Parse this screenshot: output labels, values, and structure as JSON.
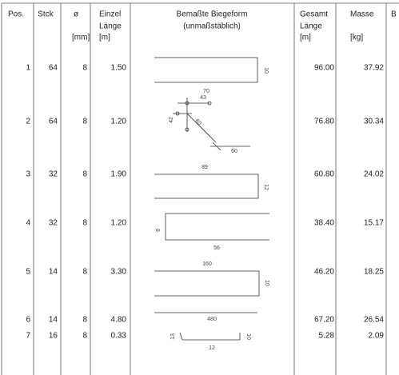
{
  "header": {
    "pos": "Pos.",
    "stck": "Stck",
    "dia": "ø",
    "length": [
      "Einzel",
      "Länge"
    ],
    "shape": [
      "Bemaßte Biegeform",
      "(unmaßstäblich)"
    ],
    "total": [
      "Gesamt",
      "Länge"
    ],
    "mass": "Masse",
    "cut": "B"
  },
  "units": {
    "dia": "[mm]",
    "length": "[m]",
    "total": "[m]",
    "mass": "[kg]"
  },
  "table": {
    "rows": [
      {
        "pos": "1",
        "stck": "64",
        "dia": "8",
        "length": "1.50",
        "shape_labels": [
          "10"
        ],
        "total": "96.00",
        "mass": "37.92"
      },
      {
        "pos": "2",
        "stck": "64",
        "dia": "8",
        "length": "1.20",
        "shape_labels": [
          "70",
          "43",
          "42",
          "60",
          "60"
        ],
        "total": "76.80",
        "mass": "30.34"
      },
      {
        "pos": "3",
        "stck": "32",
        "dia": "8",
        "length": "1.90",
        "shape_labels": [
          "89",
          "12"
        ],
        "total": "60.80",
        "mass": "24.02"
      },
      {
        "pos": "4",
        "stck": "32",
        "dia": "8",
        "length": "1.20",
        "shape_labels": [
          "8",
          "56"
        ],
        "total": "38.40",
        "mass": "15.17"
      },
      {
        "pos": "5",
        "stck": "14",
        "dia": "8",
        "length": "3.30",
        "shape_labels": [
          "160",
          "10"
        ],
        "total": "46.20",
        "mass": "18.25"
      },
      {
        "pos": "6",
        "stck": "14",
        "dia": "8",
        "length": "4.80",
        "shape_labels": [
          "480"
        ],
        "total": "67.20",
        "mass": "26.54"
      },
      {
        "pos": "7",
        "stck": "16",
        "dia": "8",
        "length": "0.33",
        "shape_labels": [
          "13",
          "12",
          "10"
        ],
        "total": "5.28",
        "mass": "2.09"
      }
    ]
  }
}
